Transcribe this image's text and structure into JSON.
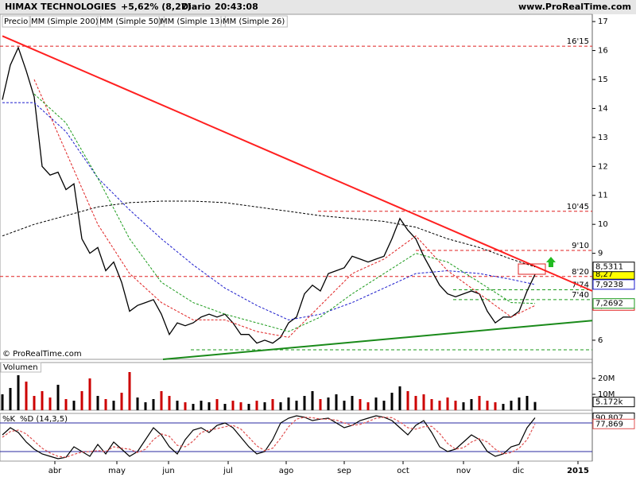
{
  "header": {
    "title": "HIMAX TECHNOLOGIES",
    "change": "+5,62% (8,27)",
    "period": "Diario",
    "time": "20:43:08",
    "site": "www.ProRealTime.com"
  },
  "chart_data": [
    {
      "type": "line",
      "copyright": "© ProRealTime.com",
      "xlim": [
        -0.3,
        74.2
      ],
      "ylim": [
        5.34,
        17.25
      ],
      "yticks": [
        6,
        9,
        10,
        11,
        12,
        13,
        14,
        15,
        16,
        17
      ],
      "series": [
        {
          "name": "Precio",
          "color": "#000000",
          "last_label": "8,27",
          "values": [
            14.3,
            15.5,
            16.1,
            15.3,
            14.4,
            12.0,
            11.7,
            11.8,
            11.2,
            11.4,
            9.5,
            9.0,
            9.2,
            8.4,
            8.7,
            8.0,
            7.0,
            7.2,
            7.3,
            7.4,
            6.9,
            6.2,
            6.6,
            6.5,
            6.6,
            6.8,
            6.9,
            6.8,
            6.9,
            6.6,
            6.2,
            6.2,
            5.9,
            6.0,
            5.9,
            6.1,
            6.6,
            6.8,
            7.6,
            7.9,
            7.7,
            8.3,
            8.4,
            8.5,
            8.9,
            8.8,
            8.7,
            8.8,
            8.9,
            9.5,
            10.2,
            9.8,
            9.5,
            8.9,
            8.4,
            7.9,
            7.6,
            7.5,
            7.6,
            7.7,
            7.6,
            7.0,
            6.6,
            6.8,
            6.8,
            7.0,
            7.7,
            8.27
          ]
        },
        {
          "name": "MM (Simple 200)",
          "color": "#000000",
          "dash": true,
          "last_label": "8,5311",
          "x": [
            0,
            4,
            8,
            12,
            16,
            20,
            24,
            28,
            32,
            36,
            40,
            44,
            48,
            52,
            56,
            60,
            64,
            67
          ],
          "values": [
            9.6,
            10.0,
            10.3,
            10.6,
            10.75,
            10.8,
            10.8,
            10.75,
            10.6,
            10.45,
            10.3,
            10.2,
            10.1,
            9.9,
            9.5,
            9.2,
            8.8,
            8.5311
          ]
        },
        {
          "name": "MM (Simple 50)",
          "color": "#1a1acc",
          "dash": true,
          "last_label": "7,9238",
          "x": [
            0,
            4,
            8,
            12,
            16,
            20,
            24,
            28,
            32,
            36,
            40,
            44,
            48,
            52,
            56,
            60,
            64,
            67
          ],
          "values": [
            14.2,
            14.2,
            13.2,
            11.6,
            10.5,
            9.5,
            8.6,
            7.8,
            7.2,
            6.7,
            6.9,
            7.3,
            7.8,
            8.3,
            8.4,
            8.3,
            8.1,
            7.9238
          ]
        },
        {
          "name": "MM (Simple 13)",
          "color": "#e02020",
          "dash": true,
          "last_label": "7,1992",
          "x": [
            0,
            4,
            8,
            12,
            16,
            20,
            24,
            28,
            32,
            36,
            40,
            44,
            48,
            52,
            56,
            60,
            64,
            67
          ],
          "values": [
            null,
            15.0,
            12.5,
            10.0,
            8.3,
            7.3,
            6.7,
            6.7,
            6.3,
            6.1,
            7.2,
            8.3,
            8.8,
            9.6,
            8.4,
            7.6,
            6.8,
            7.1992
          ]
        },
        {
          "name": "MM (Simple 26)",
          "color": "#1a9a1a",
          "dash": true,
          "last_label": "7,2692",
          "x": [
            0,
            4,
            8,
            12,
            16,
            20,
            24,
            28,
            32,
            36,
            40,
            44,
            48,
            52,
            56,
            60,
            64,
            67
          ],
          "values": [
            null,
            14.5,
            13.5,
            11.6,
            9.5,
            8.0,
            7.3,
            6.9,
            6.6,
            6.3,
            6.8,
            7.6,
            8.3,
            9.0,
            8.7,
            8.0,
            7.3,
            7.2692
          ]
        }
      ],
      "levels": [
        {
          "value": 16.15,
          "label": "16'15",
          "color": "#e02020",
          "from": -0.3
        },
        {
          "value": 10.45,
          "label": "10'45",
          "color": "#e02020",
          "from": 39.7
        },
        {
          "value": 9.1,
          "label": "9'10",
          "color": "#e02020",
          "from": 52
        },
        {
          "value": 8.2,
          "label": "8'20",
          "color": "#e02020",
          "from": -0.3
        },
        {
          "value": 7.74,
          "label": "7'74",
          "color": "#1a9a1a",
          "from": 56.7
        },
        {
          "value": 7.4,
          "label": "7'40",
          "color": "#1a9a1a",
          "from": 56.7
        },
        {
          "value": 5.67,
          "label": null,
          "color": "#1a9a1a",
          "from": 23.7
        }
      ],
      "trendlines": [
        {
          "color": "#ff2020",
          "x": [
            0,
            74.2
          ],
          "values": [
            16.5,
            7.7
          ]
        },
        {
          "color": "#1a8a1a",
          "x": [
            20.2,
            74.2
          ],
          "values": [
            5.34,
            6.68
          ]
        }
      ]
    },
    {
      "type": "bar",
      "title": "Volumen",
      "xlim": [
        -0.3,
        74.2
      ],
      "ylim": [
        0,
        30
      ],
      "yticks": [
        {
          "value": 10,
          "label": "10M"
        },
        {
          "value": 20,
          "label": "20M"
        }
      ],
      "up_color": "#000000",
      "down_color": "#cc0000",
      "last_label": "5.172k",
      "values": [
        10,
        14,
        22,
        18,
        9,
        12,
        8,
        16,
        7,
        6,
        12,
        20,
        9,
        7,
        6,
        11,
        24,
        8,
        5,
        7,
        12,
        9,
        6,
        5,
        4,
        6,
        5,
        7,
        4,
        6,
        5,
        4,
        6,
        5,
        7,
        5,
        8,
        6,
        9,
        12,
        7,
        8,
        10,
        6,
        9,
        7,
        5,
        8,
        6,
        11,
        15,
        12,
        9,
        10,
        7,
        6,
        8,
        6,
        5,
        7,
        9,
        6,
        5,
        4,
        6,
        8,
        9,
        5.172
      ]
    },
    {
      "type": "stochastic",
      "xlim": [
        -0.3,
        74.2
      ],
      "ylim": [
        0,
        100
      ],
      "bands": [
        20,
        80
      ],
      "band_color": "#2a2aa0",
      "xticks": [
        {
          "value": 6.6,
          "label": "abr"
        },
        {
          "value": 14.4,
          "label": "may"
        },
        {
          "value": 20.9,
          "label": "jun"
        },
        {
          "value": 28.4,
          "label": "jul"
        },
        {
          "value": 35.7,
          "label": "ago"
        },
        {
          "value": 43,
          "label": "sep"
        },
        {
          "value": 50.4,
          "label": "oct"
        },
        {
          "value": 58,
          "label": "nov"
        },
        {
          "value": 64.9,
          "label": "dic"
        },
        {
          "value": 72.4,
          "label": "2015"
        }
      ],
      "series": [
        {
          "name": "%K",
          "color": "#000000",
          "last_label": "90,807",
          "values": [
            55,
            70,
            60,
            40,
            25,
            15,
            10,
            5,
            8,
            30,
            20,
            10,
            35,
            15,
            40,
            25,
            10,
            20,
            45,
            70,
            55,
            30,
            15,
            45,
            65,
            70,
            60,
            75,
            80,
            70,
            50,
            30,
            15,
            20,
            45,
            80,
            90,
            95,
            92,
            85,
            88,
            90,
            80,
            70,
            75,
            85,
            90,
            95,
            92,
            85,
            70,
            55,
            75,
            85,
            60,
            30,
            20,
            25,
            40,
            55,
            45,
            20,
            10,
            15,
            30,
            35,
            70,
            90.807
          ]
        },
        {
          "name": "%D (14,3,5)",
          "color": "#e05050",
          "dash": true,
          "last_label": "77,869",
          "values": [
            50,
            62,
            65,
            57,
            42,
            27,
            17,
            10,
            8,
            14,
            19,
            20,
            22,
            20,
            30,
            27,
            25,
            18,
            25,
            45,
            57,
            52,
            33,
            30,
            42,
            60,
            65,
            68,
            72,
            75,
            67,
            50,
            32,
            22,
            27,
            48,
            72,
            88,
            92,
            91,
            88,
            88,
            86,
            80,
            75,
            77,
            83,
            90,
            92,
            91,
            82,
            70,
            67,
            72,
            73,
            58,
            37,
            25,
            28,
            40,
            47,
            40,
            25,
            15,
            18,
            27,
            45,
            77.869
          ]
        }
      ]
    }
  ]
}
